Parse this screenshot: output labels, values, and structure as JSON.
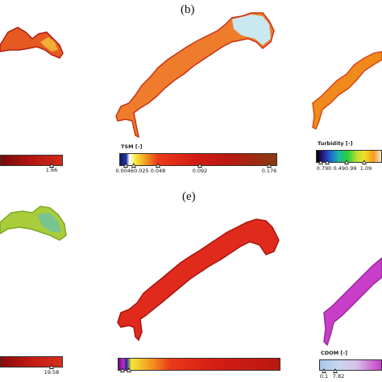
{
  "labels": {
    "b": "(b)",
    "e": "(e)"
  },
  "colors": {
    "background": "#ffffff",
    "river_red": "#d8261c",
    "river_orange": "#f07d2c",
    "river_magenta": "#c83ec8",
    "river_green": "#b7d43a",
    "water_light": "#c9e8f0"
  },
  "colorbars": {
    "top_left": {
      "title": "",
      "tick_labels": [
        "1.66"
      ]
    },
    "tsm": {
      "title": "TSM [-]",
      "tick_labels": [
        "0.00460.025",
        "0.048",
        "0.092",
        "0.176"
      ]
    },
    "turbidity": {
      "title": "Turbidity [-]",
      "tick_labels": [
        "0.790",
        "0.490.99",
        "1.09"
      ]
    },
    "bottom_left": {
      "title": "",
      "tick_labels": [
        "19.58"
      ]
    },
    "bottom_mid": {
      "title": "",
      "tick_labels": []
    },
    "cdom": {
      "title": "CDOM [-]",
      "tick_labels": [
        "0.1",
        "7.82"
      ]
    }
  }
}
